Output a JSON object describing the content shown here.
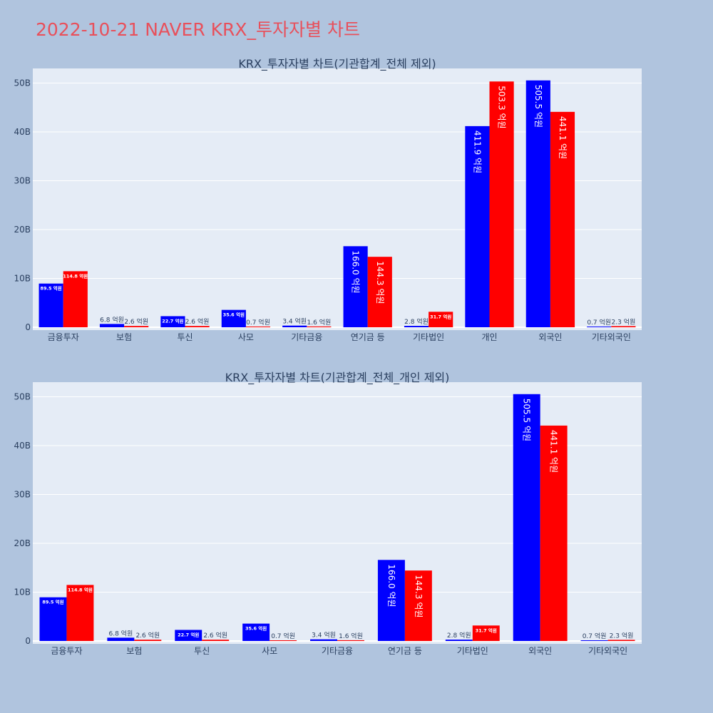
{
  "page_title": "2022-10-21 NAVER KRX_투자자별 차트",
  "colors": {
    "background": "#b0c4de",
    "plot_bg": "#e5ecf6",
    "title": "#e8505b",
    "series_a": "#0000ff",
    "series_b": "#ff0000",
    "text": "#2a3f5f",
    "grid": "#ffffff"
  },
  "chart_data": [
    {
      "type": "bar",
      "title": "KRX_투자자별 차트(기관합계_전체 제외)",
      "xlabel": "",
      "ylabel": "",
      "ylim": [
        0,
        53000000000
      ],
      "yticks": [
        0,
        10000000000,
        20000000000,
        30000000000,
        40000000000,
        50000000000
      ],
      "ytick_labels": [
        "0",
        "10B",
        "20B",
        "30B",
        "40B",
        "50B"
      ],
      "grid": true,
      "categories": [
        "금융투자",
        "보험",
        "투신",
        "사모",
        "기타금융",
        "연기금 등",
        "기타법인",
        "개인",
        "외국인",
        "기타외국인"
      ],
      "series": [
        {
          "name": "series_a",
          "color": "#0000ff",
          "values": [
            8950000000,
            680000000,
            2270000000,
            3560000000,
            340000000,
            16600000000,
            280000000,
            41190000000,
            50550000000,
            70000000
          ],
          "labels": [
            "89.5 억원",
            "6.8 억원",
            "22.7 억원",
            "35.6 억원",
            "3.4 억원",
            "166.0 억원",
            "2.8 억원",
            "411.9 억원",
            "505.5 억원",
            "0.7 억원"
          ]
        },
        {
          "name": "series_b",
          "color": "#ff0000",
          "values": [
            11480000000,
            260000000,
            260000000,
            70000000,
            160000000,
            14430000000,
            3170000000,
            50330000000,
            44110000000,
            230000000
          ],
          "labels": [
            "114.8 억원",
            "2.6 억원",
            "2.6 억원",
            "0.7 억원",
            "1.6 억원",
            "144.3 억원",
            "31.7 억원",
            "503.3 억원",
            "441.1 억원",
            "2.3 억원"
          ]
        }
      ]
    },
    {
      "type": "bar",
      "title": "KRX_투자자별 차트(기관합계_전체_개인 제외)",
      "xlabel": "",
      "ylabel": "",
      "ylim": [
        0,
        53000000000
      ],
      "yticks": [
        0,
        10000000000,
        20000000000,
        30000000000,
        40000000000,
        50000000000
      ],
      "ytick_labels": [
        "0",
        "10B",
        "20B",
        "30B",
        "40B",
        "50B"
      ],
      "grid": true,
      "categories": [
        "금융투자",
        "보험",
        "투신",
        "사모",
        "기타금융",
        "연기금 등",
        "기타법인",
        "외국인",
        "기타외국인"
      ],
      "series": [
        {
          "name": "series_a",
          "color": "#0000ff",
          "values": [
            8950000000,
            680000000,
            2270000000,
            3560000000,
            340000000,
            16600000000,
            280000000,
            50550000000,
            70000000
          ],
          "labels": [
            "89.5 억원",
            "6.8 억원",
            "22.7 억원",
            "35.6 억원",
            "3.4 억원",
            "166.0 억원",
            "2.8 억원",
            "505.5 억원",
            "0.7 억원"
          ]
        },
        {
          "name": "series_b",
          "color": "#ff0000",
          "values": [
            11480000000,
            260000000,
            260000000,
            70000000,
            160000000,
            14430000000,
            3170000000,
            44110000000,
            230000000
          ],
          "labels": [
            "114.8 억원",
            "2.6 억원",
            "2.6 억원",
            "0.7 억원",
            "1.6 억원",
            "144.3 억원",
            "31.7 억원",
            "441.1 억원",
            "2.3 억원"
          ]
        }
      ]
    }
  ]
}
